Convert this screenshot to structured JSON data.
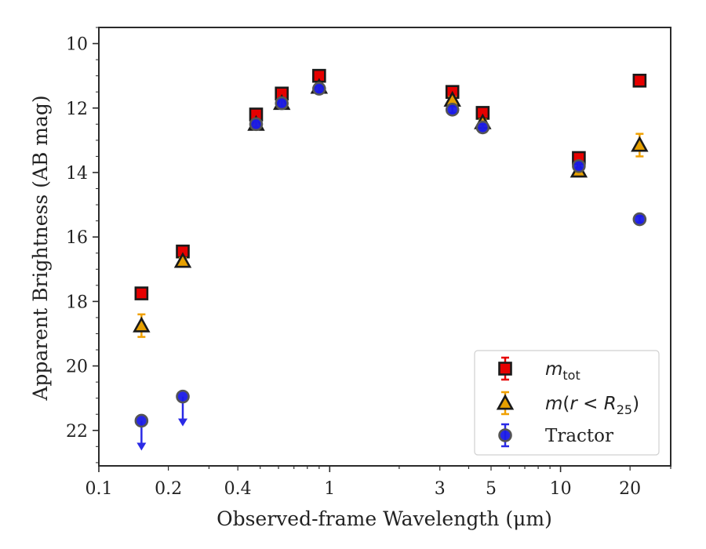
{
  "chart_data": {
    "type": "scatter",
    "xlabel": "Observed-frame Wavelength (μm)",
    "ylabel": "Apparent Brightness (AB mag)",
    "xscale": "log",
    "xlim": [
      0.1,
      30
    ],
    "ylim": [
      23.1,
      9.5
    ],
    "y_inverted": true,
    "x_ticks": [
      {
        "value": 0.1,
        "label": "0.1"
      },
      {
        "value": 0.2,
        "label": "0.2"
      },
      {
        "value": 0.4,
        "label": "0.4"
      },
      {
        "value": 1,
        "label": "1"
      },
      {
        "value": 3,
        "label": "3"
      },
      {
        "value": 5,
        "label": "5"
      },
      {
        "value": 10,
        "label": "10"
      },
      {
        "value": 20,
        "label": "20"
      }
    ],
    "y_ticks": [
      10,
      12,
      14,
      16,
      18,
      20,
      22
    ],
    "grid": false,
    "legend_position": "bottom-right",
    "series": [
      {
        "name": "m_tot",
        "marker": "square",
        "fill": "#e60000",
        "edge": "#1a1a1a",
        "errcolor": "#e60000",
        "points": [
          {
            "x": 0.153,
            "y": 17.75,
            "err": 0.1
          },
          {
            "x": 0.231,
            "y": 16.45,
            "err": 0.1
          },
          {
            "x": 0.48,
            "y": 12.2,
            "err": 0.1
          },
          {
            "x": 0.62,
            "y": 11.55,
            "err": 0.1
          },
          {
            "x": 0.9,
            "y": 11.0,
            "err": 0.1
          },
          {
            "x": 3.4,
            "y": 11.5,
            "err": 0.1
          },
          {
            "x": 4.6,
            "y": 12.15,
            "err": 0.1
          },
          {
            "x": 12.0,
            "y": 13.55,
            "err": 0.1
          },
          {
            "x": 22.0,
            "y": 11.15,
            "err": 0.1
          }
        ]
      },
      {
        "name": "m(r < R25)",
        "marker": "triangle",
        "fill": "#e6a000",
        "edge": "#1a1a1a",
        "errcolor": "#f0a000",
        "points": [
          {
            "x": 0.153,
            "y": 18.75,
            "err": 0.35
          },
          {
            "x": 0.231,
            "y": 16.75,
            "err": 0.1
          },
          {
            "x": 0.48,
            "y": 12.5,
            "err": 0.1
          },
          {
            "x": 0.62,
            "y": 11.85,
            "err": 0.1
          },
          {
            "x": 0.9,
            "y": 11.35,
            "err": 0.1
          },
          {
            "x": 3.4,
            "y": 11.75,
            "err": 0.1
          },
          {
            "x": 4.6,
            "y": 12.45,
            "err": 0.1
          },
          {
            "x": 12.0,
            "y": 13.95,
            "err": 0.1
          },
          {
            "x": 22.0,
            "y": 13.15,
            "err": 0.35
          }
        ]
      },
      {
        "name": "Tractor",
        "marker": "circle",
        "fill": "#1a1ae6",
        "edge": "#555555",
        "errcolor": "#2a2ae6",
        "points": [
          {
            "x": 0.153,
            "y": 21.7,
            "err": 0.1,
            "upper_limit": true
          },
          {
            "x": 0.231,
            "y": 20.95,
            "err": 0.1,
            "upper_limit": true
          },
          {
            "x": 0.48,
            "y": 12.5,
            "err": 0.1
          },
          {
            "x": 0.62,
            "y": 11.85,
            "err": 0.1
          },
          {
            "x": 0.9,
            "y": 11.4,
            "err": 0.1
          },
          {
            "x": 3.4,
            "y": 12.05,
            "err": 0.1
          },
          {
            "x": 4.6,
            "y": 12.6,
            "err": 0.1
          },
          {
            "x": 12.0,
            "y": 13.8,
            "err": 0.1
          },
          {
            "x": 22.0,
            "y": 15.45,
            "err": 0.1
          }
        ]
      }
    ]
  }
}
